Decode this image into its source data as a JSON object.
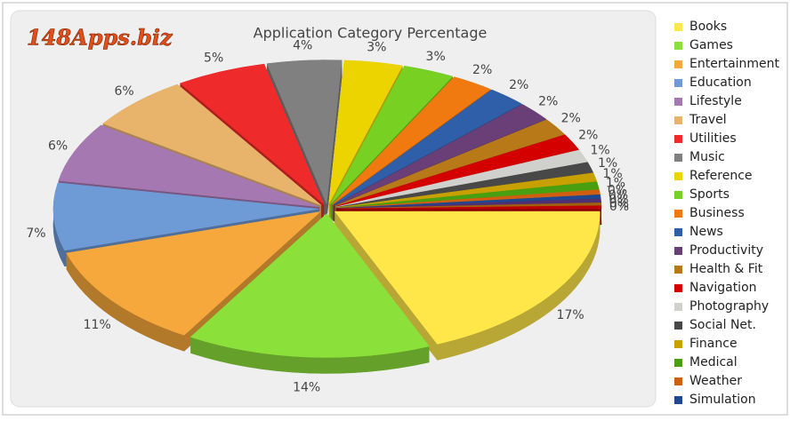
{
  "logo": "148Apps.biz",
  "chart_data": {
    "type": "pie3d",
    "title": "Application Category Percentage",
    "categories": [
      "Books",
      "Games",
      "Entertainment",
      "Education",
      "Lifestyle",
      "Travel",
      "Utilities",
      "Music",
      "Reference",
      "Sports",
      "Business",
      "News",
      "Productivity",
      "Health & Fit",
      "Navigation",
      "Photography",
      "Social Net.",
      "Finance",
      "Medical",
      "Weather",
      "Simulation",
      null,
      null,
      null
    ],
    "values": [
      17.3,
      13.8,
      10.9,
      7.0,
      6.2,
      5.8,
      5.1,
      4.2,
      3.3,
      2.9,
      2.4,
      2.2,
      2.0,
      1.8,
      1.7,
      1.3,
      1.1,
      0.9,
      0.8,
      0.5,
      0.4,
      0.4,
      0.3,
      0.3
    ],
    "value_labels": [
      "17%",
      "14%",
      "11%",
      "7%",
      "6%",
      "6%",
      "5%",
      "4%",
      "3%",
      "3%",
      "2%",
      "2%",
      "2%",
      "2%",
      "2%",
      "1%",
      "1%",
      "1%",
      "1%",
      "0%",
      "0%",
      "0%",
      "0%",
      "0%"
    ],
    "colors": [
      "#ffe74a",
      "#8ce03a",
      "#f7a83c",
      "#6e9ad6",
      "#a678b2",
      "#e8b46c",
      "#ee2a2a",
      "#808080",
      "#ecd400",
      "#78d022",
      "#f07a10",
      "#2f5fa8",
      "#6a3f78",
      "#b87a18",
      "#d40000",
      "#d0d0cc",
      "#484848",
      "#c8a000",
      "#48a010",
      "#d06010",
      "#1e4890",
      "#503070",
      "#a06010",
      "#c00000"
    ],
    "legend": "right"
  }
}
